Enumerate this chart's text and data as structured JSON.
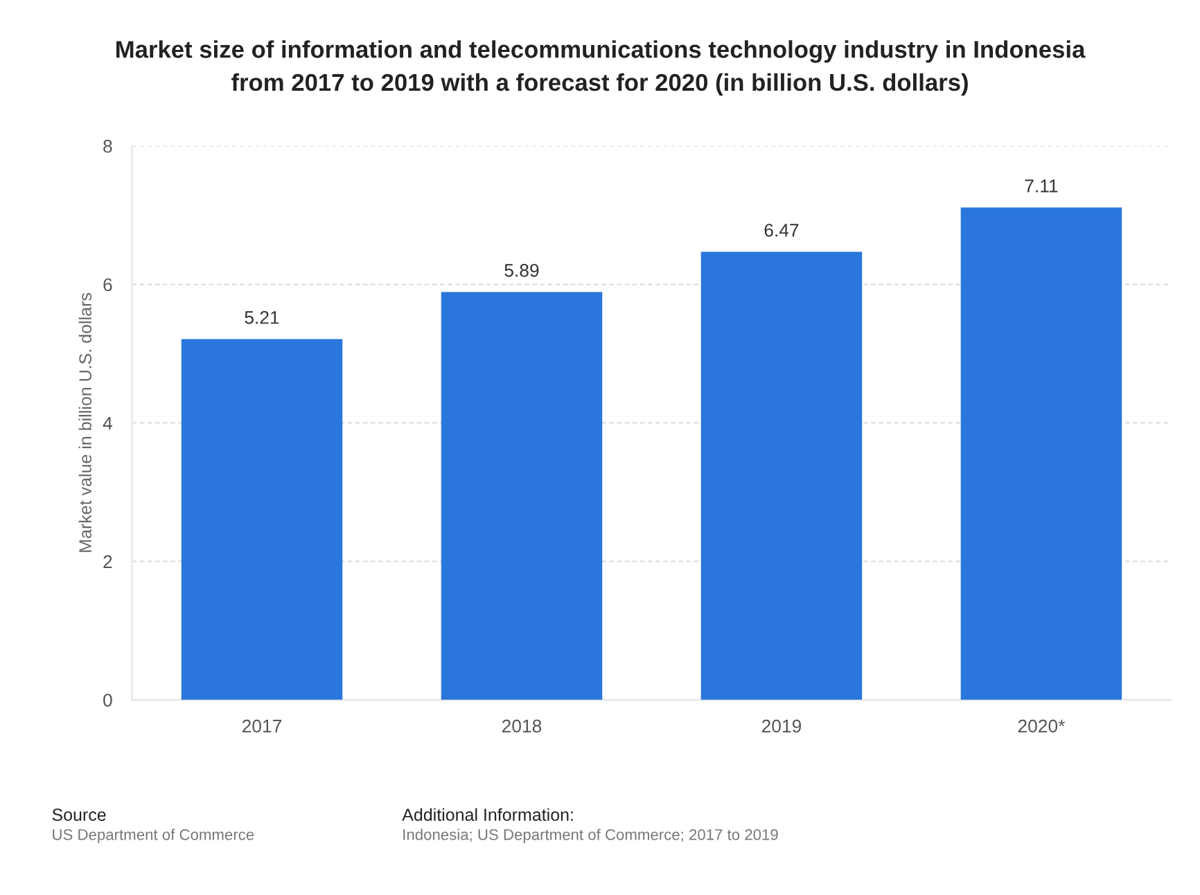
{
  "chart_data": {
    "type": "bar",
    "title": "Market size of information and telecommunications technology industry in Indonesia\nfrom 2017 to 2019 with a forecast for 2020 (in billion U.S. dollars)",
    "ylabel": "Market value in billion U.S. dollars",
    "categories": [
      "2017",
      "2018",
      "2019",
      "2020*"
    ],
    "values": [
      5.21,
      5.89,
      6.47,
      7.11
    ],
    "color": "#2a76dd",
    "ylim": [
      0,
      8
    ],
    "yticks": [
      0,
      2,
      4,
      6,
      8
    ],
    "grid": "y",
    "data_labels": true,
    "legend": false,
    "annotations": [
      "Source",
      "US Department of Commerce",
      "Additional Information:",
      "Indonesia; US Department of Commerce; 2017 to 2019"
    ]
  }
}
